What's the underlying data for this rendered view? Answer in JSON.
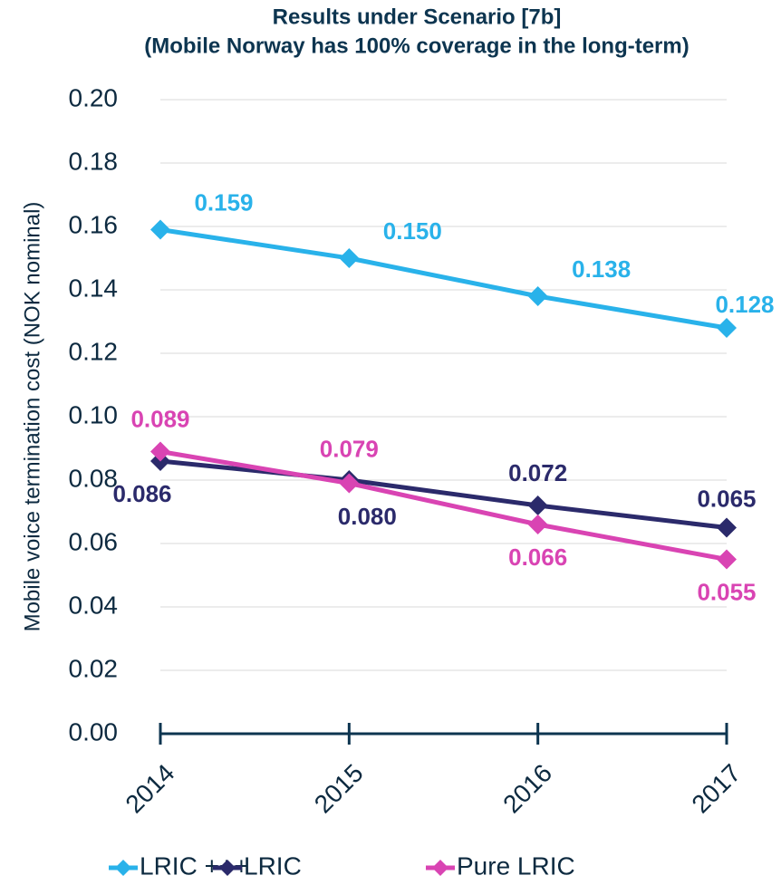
{
  "chart_data": {
    "type": "line",
    "title": "Results under Scenario [7b]",
    "subtitle": "(Mobile Norway has 100% coverage in the long-term)",
    "y_label": "Mobile voice termination cost (NOK nominal)",
    "categories": [
      "2014",
      "2015",
      "2016",
      "2017"
    ],
    "series": [
      {
        "name": "LRIC +++",
        "color": "#29b2ea",
        "values": [
          0.159,
          0.15,
          0.138,
          0.128
        ],
        "value_labels": [
          "0.159",
          "0.150",
          "0.138",
          "0.128"
        ]
      },
      {
        "name": "LRIC",
        "color": "#2b2a6b",
        "values": [
          0.086,
          0.08,
          0.072,
          0.065
        ],
        "value_labels": [
          "0.086",
          "0.080",
          "0.072",
          "0.065"
        ]
      },
      {
        "name": "Pure LRIC",
        "color": "#d944b3",
        "values": [
          0.089,
          0.079,
          0.066,
          0.055
        ],
        "value_labels": [
          "0.089",
          "0.079",
          "0.066",
          "0.055"
        ]
      }
    ],
    "ylim": [
      0,
      0.2
    ],
    "yticks": [
      {
        "value": 0,
        "label": "0.00"
      },
      {
        "value": 0.02,
        "label": "0.02"
      },
      {
        "value": 0.04,
        "label": "0.04"
      },
      {
        "value": 0.06,
        "label": "0.06"
      },
      {
        "value": 0.08,
        "label": "0.08"
      },
      {
        "value": 0.1,
        "label": "0.10"
      },
      {
        "value": 0.12,
        "label": "0.12"
      },
      {
        "value": 0.14,
        "label": "0.14"
      },
      {
        "value": 0.16,
        "label": "0.16"
      },
      {
        "value": 0.18,
        "label": "0.18"
      },
      {
        "value": 0.2,
        "label": "0.20"
      }
    ],
    "grid": true,
    "legend": "bottom"
  }
}
